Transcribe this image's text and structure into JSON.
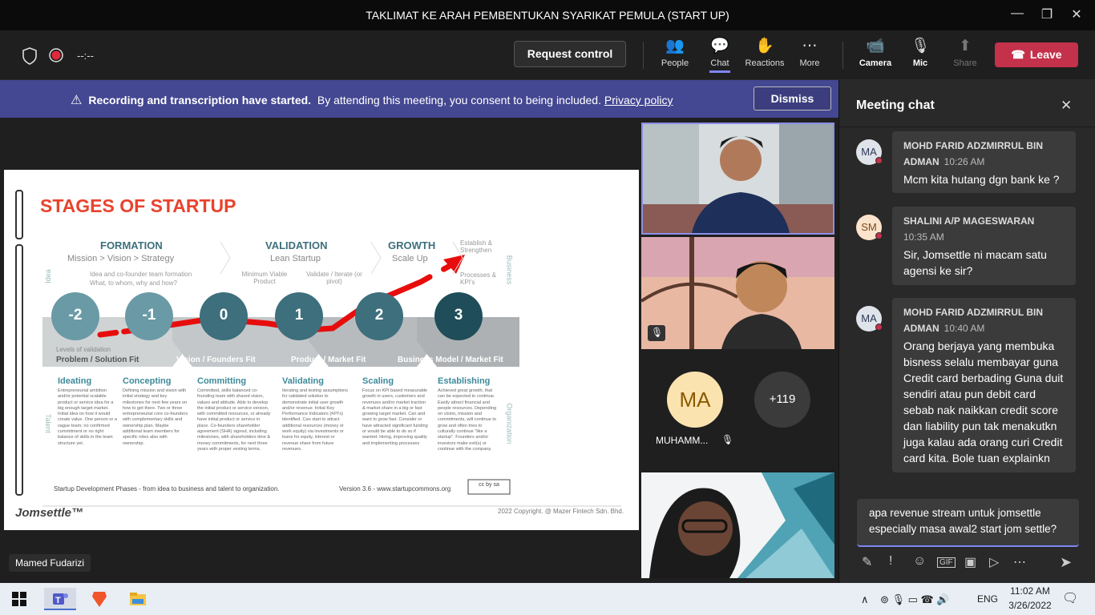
{
  "window": {
    "title": "TAKLIMAT KE ARAH PEMBENTUKAN SYARIKAT PEMULA (START UP)",
    "minimize": "—",
    "maximize": "❐",
    "close": "✕"
  },
  "toolbar": {
    "timer": "--:--",
    "request_control": "Request control",
    "people": "People",
    "chat": "Chat",
    "reactions": "Reactions",
    "more": "More",
    "camera": "Camera",
    "mic": "Mic",
    "share": "Share",
    "leave": "Leave"
  },
  "banner": {
    "bold": "Recording and transcription have started.",
    "text": "By attending this meeting, you consent to being included.",
    "link": "Privacy policy",
    "dismiss": "Dismiss"
  },
  "slide": {
    "title": "STAGES OF STARTUP",
    "formation": "FORMATION",
    "formation_sub": "Mission > Vision > Strategy",
    "validation": "VALIDATION",
    "validation_sub": "Lean Startup",
    "growth": "GROWTH",
    "growth_sub": "Scale Up",
    "establish": "Establish & Strengthen",
    "processes": "Processes & KPI's",
    "idea_a": "Idea and co-founder team formation",
    "idea_b": "What, to whom, why and how?",
    "mvp": "Minimum Viable Product",
    "iterate": "Validate / Iterate (or pivot)",
    "side_idea": "Idea",
    "side_business": "Business",
    "side_talent": "Talent",
    "side_org": "Organization",
    "stages": [
      "-2",
      "-1",
      "0",
      "1",
      "2",
      "3"
    ],
    "levels_label": "Levels of validation",
    "fits": [
      "Problem / Solution Fit",
      "Vision / Founders Fit",
      "Product / Market Fit",
      "Business Model / Market Fit"
    ],
    "phases": [
      {
        "name": "Ideating",
        "desc": "Entrepreneurial ambition and/or potential scalable product or service idea for a big enough target market. Initial idea on how it would create value. One person or a vague team; no confirmed commitment or no right balance of skills in the team structure yet."
      },
      {
        "name": "Concepting",
        "desc": "Defining mission and vision with initial strategy and key milestones for next few years on how to get there. Two or three entrepreneurial core co-founders with complementary skills and ownership plan. Maybe additional team members for specific roles also with ownership."
      },
      {
        "name": "Committing",
        "desc": "Committed, skills balanced co-founding team with shared vision, values and attitude. Able to develop the initial product or service version, with committed resources, or already have initial product or service in place. Co-founders shareholder agreement (SHA) signed, including milestones, with shareholders time & money commitments, for next three years with proper vesting terms."
      },
      {
        "name": "Validating",
        "desc": "Iterating and testing assumptions for validated solution to demonstrate initial user growth and/or revenue. Initial Key Performance Indicators (KPI's) identified. Can start to attract additional resources (money or work equity) via investments or loans for equity, interest or revenue share from future revenues."
      },
      {
        "name": "Scaling",
        "desc": "Focus on KPI based measurable growth in users, customers and revenues and/or market traction & market share in a big or fast growing target market. Can and want to grow fast. Consider or have attracted significant funding or would be able to do so if wanted. Hiring, improving quality and implementing processes"
      },
      {
        "name": "Establishing",
        "desc": "Achieved great growth, that can be expected to continue. Easily attract financial and people resources. Depending on vision, mission and commitments, will continue to grow and often tries to culturally continue \"like a startup\". Founders and/or investors make exit(s) or continue with the company."
      }
    ],
    "footer_left": "Startup Development Phases - from idea to business and talent to organization.",
    "version": "Version 3.6 - www.startupcommons.org",
    "cc": "cc by sa",
    "brand": "Jomsettle™",
    "copyright": "2022 Copyright. @ Mazer Fintech Sdn. Bhd."
  },
  "presenter": {
    "name": "Mamed Fudarizi"
  },
  "participants": {
    "avatar_initials": "MA",
    "avatar_name": "MUHAMM...",
    "more_count": "+119"
  },
  "chat": {
    "title": "Meeting chat",
    "close": "✕",
    "messages": [
      {
        "initials": "MA",
        "sender": "MOHD FARID ADZMIRRUL BIN ADMAN",
        "time": "10:26 AM",
        "text": "Mcm kita hutang dgn bank ke ?"
      },
      {
        "initials": "SM",
        "sender": "SHALINI A/P MAGESWARAN",
        "time": "10:35 AM",
        "text": "Sir, Jomsettle ni macam satu agensi ke sir?"
      },
      {
        "initials": "MA",
        "sender": "MOHD FARID ADZMIRRUL BIN ADMAN",
        "time": "10:40 AM",
        "text": "Orang berjaya yang membuka bisness selalu membayar guna Credit card berbading Guna duit sendiri atau pun debit card sebab nak naikkan credit score dan liability pun tak menakutkn juga kalau ada orang curi Credit card kita. Bole tuan explainkn"
      }
    ],
    "draft": "apa revenue stream untuk jomsettle especially masa awal2 start jom settle?"
  },
  "taskbar": {
    "lang": "ENG",
    "time": "11:02 AM",
    "date": "3/26/2022"
  },
  "colors": {
    "accent": "#444791",
    "leave": "#c4314b",
    "slide_red": "#e8432d",
    "teal": "#3d6f7d"
  }
}
